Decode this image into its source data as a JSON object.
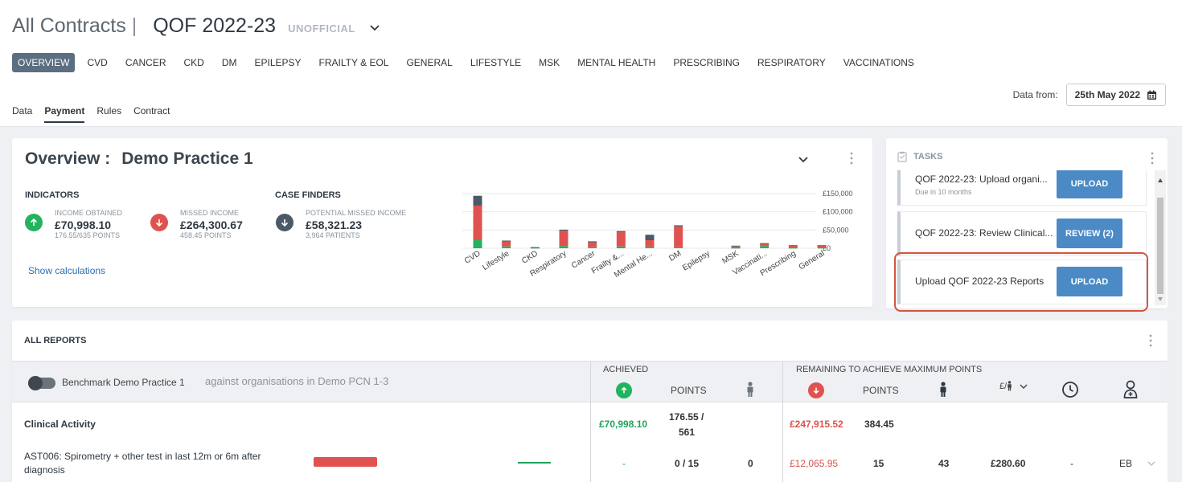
{
  "header": {
    "all_contracts": "All Contracts",
    "separator": "|",
    "contract": "QOF 2022-23",
    "status": "UNOFFICIAL"
  },
  "contract_tabs": [
    "OVERVIEW",
    "CVD",
    "CANCER",
    "CKD",
    "DM",
    "EPILEPSY",
    "FRAILTY & EOL",
    "GENERAL",
    "LIFESTYLE",
    "MSK",
    "MENTAL HEALTH",
    "PRESCRIBING",
    "RESPIRATORY",
    "VACCINATIONS"
  ],
  "sub_tabs": [
    "Data",
    "Payment",
    "Rules",
    "Contract"
  ],
  "data_from": {
    "label": "Data from:",
    "date": "25th May 2022"
  },
  "overview": {
    "title": "Overview :",
    "practice": "Demo Practice 1",
    "indicators_head": "INDICATORS",
    "case_finders_head": "CASE FINDERS",
    "income_obtained": {
      "label": "INCOME OBTAINED",
      "value": "£70,998.10",
      "sub": "176.55/635 POINTS"
    },
    "missed_income": {
      "label": "MISSED INCOME",
      "value": "£264,300.67",
      "sub": "458.45 POINTS"
    },
    "potential_missed": {
      "label": "POTENTIAL MISSED INCOME",
      "value": "£58,321.23",
      "sub": "3,964 PATIENTS"
    },
    "show_calculations": "Show calculations"
  },
  "chart_data": {
    "type": "bar",
    "stacked": true,
    "categories": [
      "CVD",
      "Lifestyle",
      "CKD",
      "Respiratory",
      "Cancer",
      "Frailty &...",
      "Mental He...",
      "DM",
      "Epilepsy",
      "MSK",
      "Vaccinati...",
      "Prescribing",
      "General"
    ],
    "series": [
      {
        "color": "#22b35e",
        "values": [
          22000,
          5000,
          1000,
          6000,
          3000,
          5000,
          4000,
          3000,
          0,
          1000,
          6000,
          1000,
          1000
        ]
      },
      {
        "color": "#e0524f",
        "values": [
          95000,
          13000,
          1000,
          42000,
          13000,
          39000,
          18000,
          57000,
          0,
          4000,
          6000,
          8000,
          8000
        ]
      },
      {
        "color": "#4c5966",
        "values": [
          27000,
          3000,
          1000,
          3000,
          3000,
          3000,
          15000,
          3000,
          0,
          2000,
          2000,
          0,
          0
        ]
      }
    ],
    "y_ticks": [
      "£150,000",
      "£100,000",
      "£50,000",
      "£0"
    ],
    "ylim": [
      0,
      150000
    ]
  },
  "tasks": {
    "title": "TASKS",
    "items": [
      {
        "text": "QOF 2022-23: Upload organi...",
        "due": "Due in 10 months",
        "button": "UPLOAD"
      },
      {
        "text": "QOF 2022-23: Review Clinical...",
        "due": "",
        "button": "REVIEW (2)"
      },
      {
        "text": "Upload QOF 2022-23 Reports",
        "due": "",
        "button": "UPLOAD"
      }
    ]
  },
  "reports": {
    "title": "ALL REPORTS",
    "benchmark": "Benchmark Demo Practice 1",
    "against": "against organisations in Demo PCN 1-3",
    "achieved": "ACHIEVED",
    "points": "POINTS",
    "remaining": "REMAINING TO ACHIEVE MAXIMUM POINTS",
    "remaining_points": "POINTS",
    "money_icon": "£/",
    "rows": [
      {
        "label": "Clinical Activity",
        "achieved_income": "£70,998.10",
        "achieved_points": "176.55 /",
        "achieved_points_2": "561",
        "patients": "",
        "remaining_income": "£247,915.52",
        "remaining_points": "384.45",
        "remaining_patients": "",
        "per_patient": "",
        "time": "",
        "owner": ""
      },
      {
        "label": "AST006: Spirometry + other test in last 12m or 6m after",
        "label_2": "diagnosis",
        "achieved_income": "-",
        "achieved_points": "0 / 15",
        "patients": "0",
        "remaining_income": "£12,065.95",
        "remaining_points": "15",
        "remaining_patients": "43",
        "per_patient": "£280.60",
        "time": "-",
        "owner": "EB"
      }
    ]
  }
}
